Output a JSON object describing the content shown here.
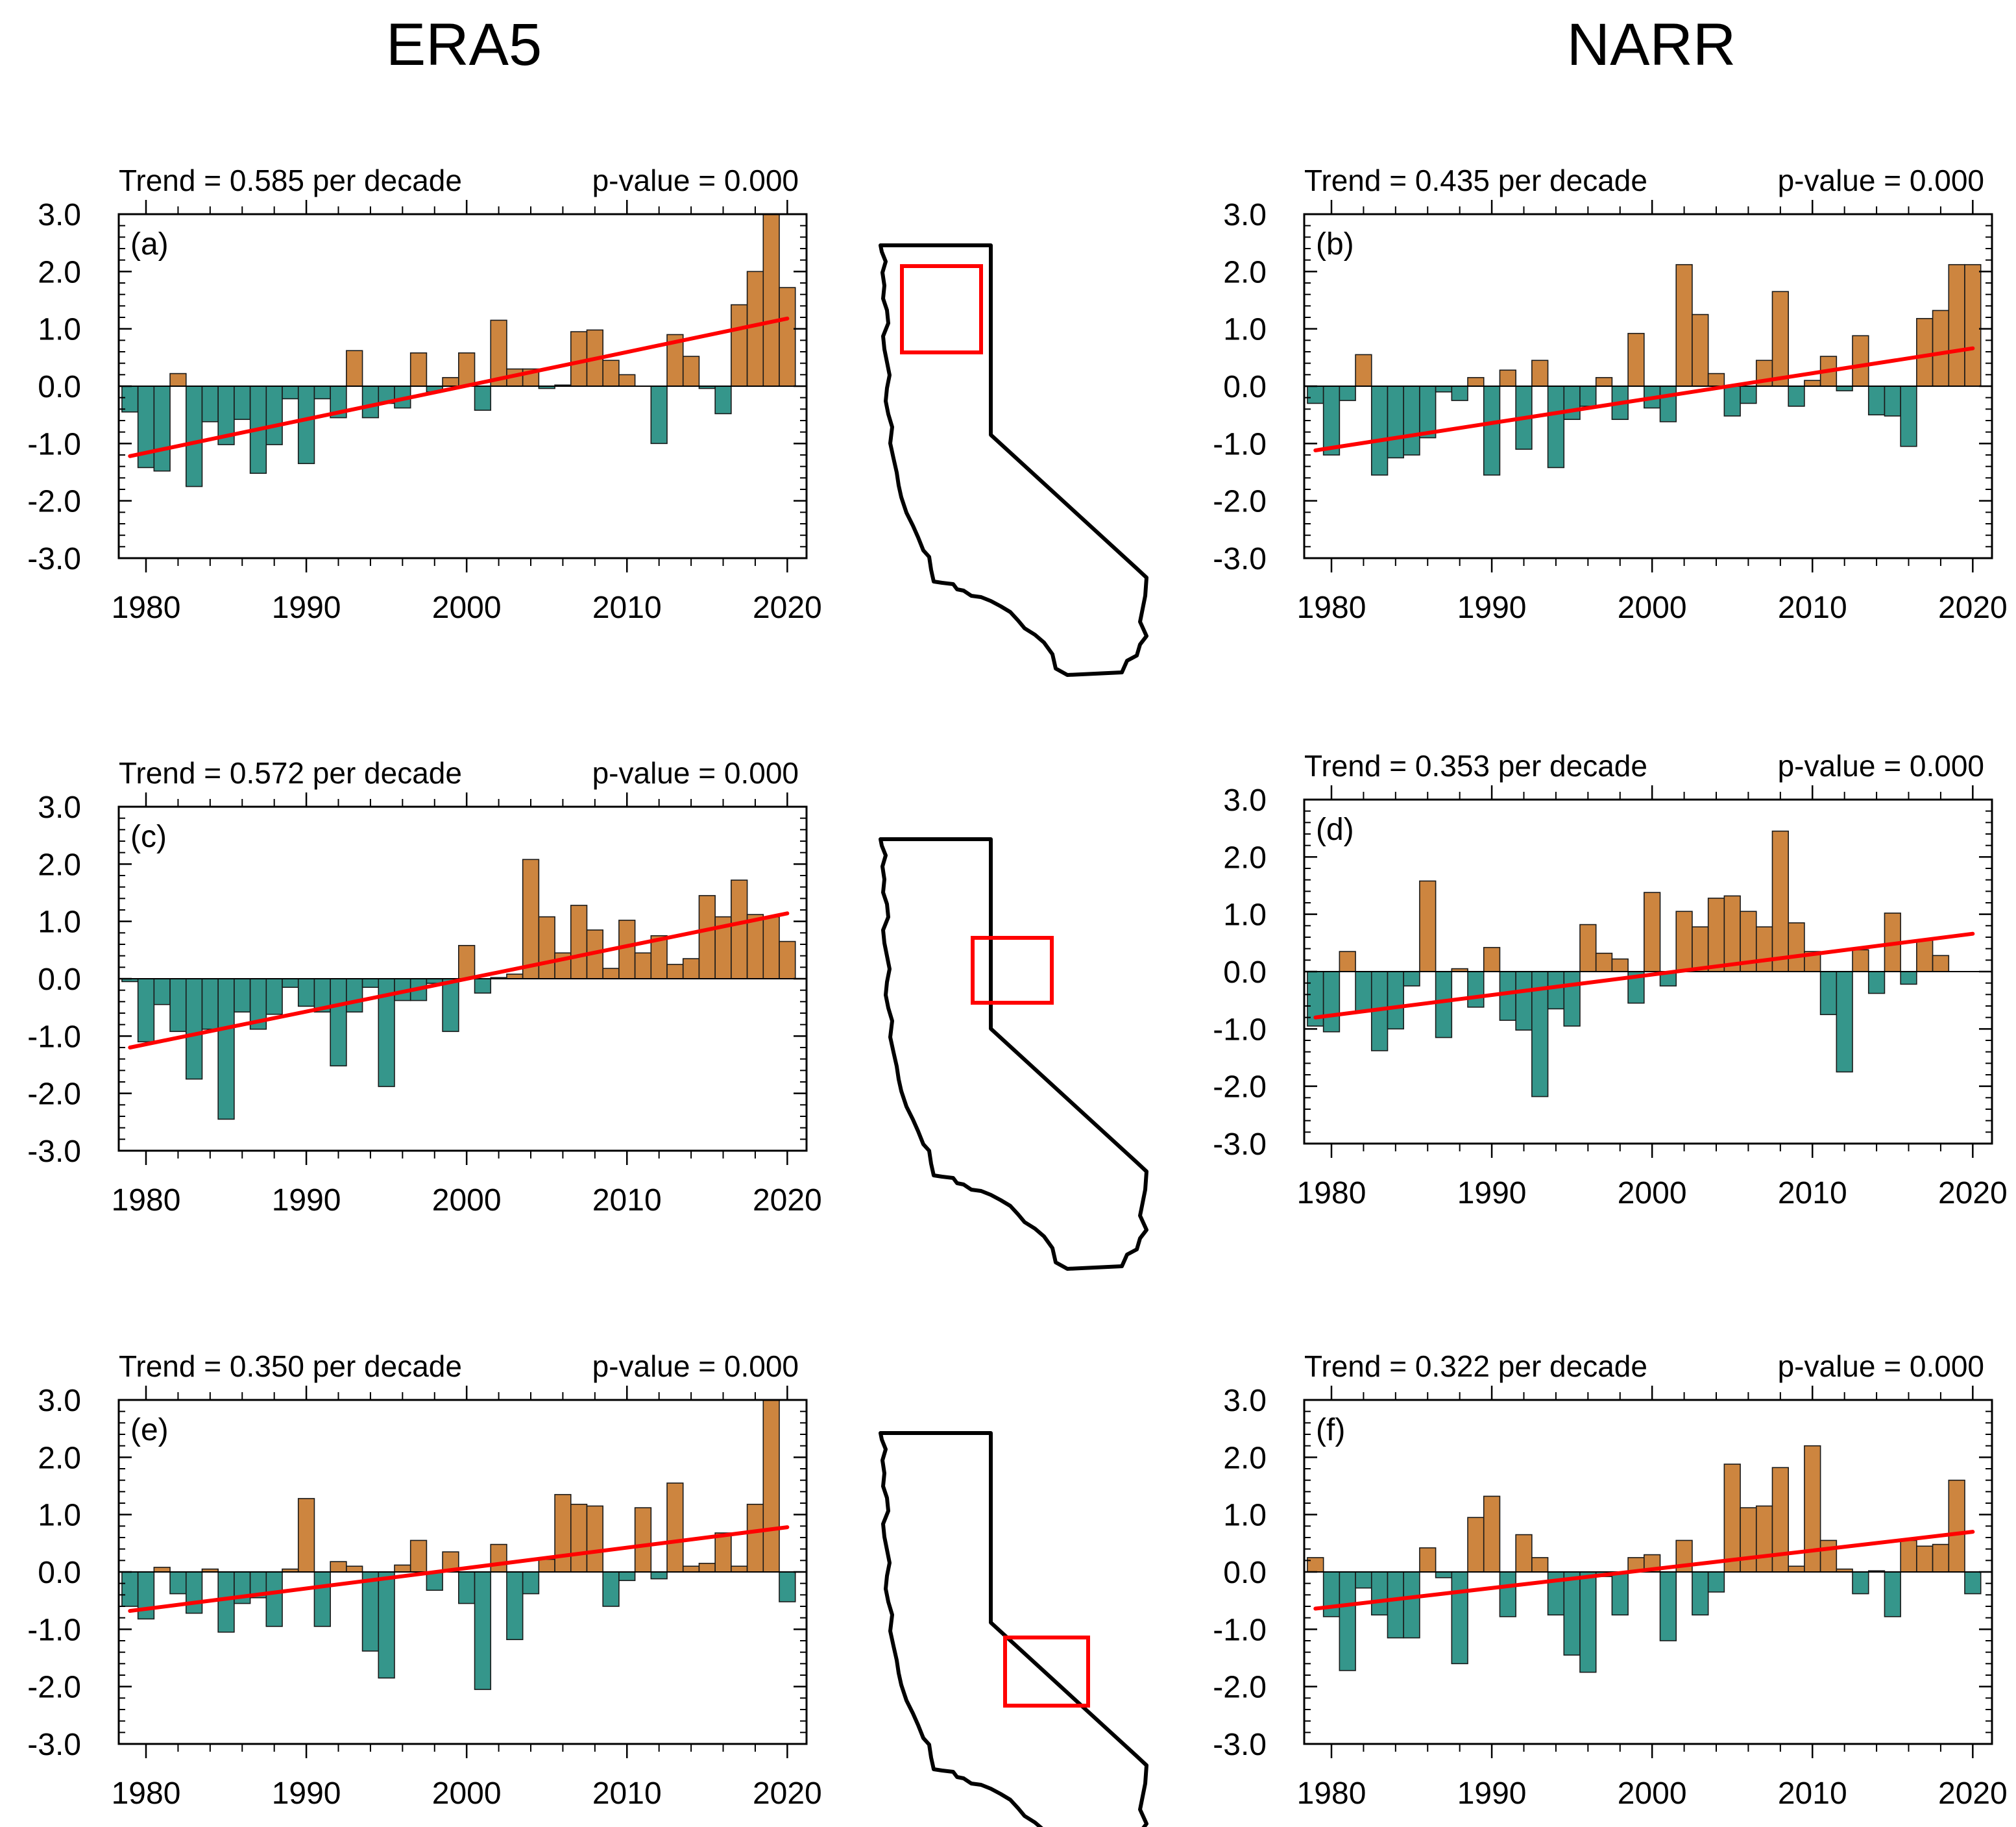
{
  "column_titles": [
    "ERA5",
    "NARR"
  ],
  "colors": {
    "positive": "#CD853F",
    "negative": "#35968B",
    "trend": "#FF0000",
    "inset_box": "#FF0000"
  },
  "chart_data": [
    {
      "type": "bar",
      "id": "a",
      "label": "(a)",
      "dataset": "ERA5",
      "trend_text": "Trend = 0.585 per decade",
      "p_text": "p-value = 0.000",
      "years": [
        1979,
        1980,
        1981,
        1982,
        1983,
        1984,
        1985,
        1986,
        1987,
        1988,
        1989,
        1990,
        1991,
        1992,
        1993,
        1994,
        1995,
        1996,
        1997,
        1998,
        1999,
        2000,
        2001,
        2002,
        2003,
        2004,
        2005,
        2006,
        2007,
        2008,
        2009,
        2010,
        2011,
        2012,
        2013,
        2014,
        2015,
        2016,
        2017,
        2018,
        2019,
        2020
      ],
      "values": [
        -0.45,
        -1.42,
        -1.48,
        0.22,
        -1.75,
        -0.62,
        -1.02,
        -0.58,
        -1.52,
        -1.02,
        -0.22,
        -1.35,
        -0.22,
        -0.55,
        0.62,
        -0.55,
        -0.3,
        -0.38,
        0.58,
        -0.1,
        0.15,
        0.58,
        -0.42,
        1.15,
        0.3,
        0.3,
        -0.04,
        0.02,
        0.95,
        0.98,
        0.45,
        0.2,
        0.0,
        -1.0,
        0.9,
        0.52,
        -0.04,
        -0.48,
        1.42,
        2.0,
        3.0,
        1.72
      ],
      "trend_line": {
        "x": [
          1979,
          2020
        ],
        "y": [
          -1.22,
          1.18
        ]
      },
      "ylim": [
        -3.0,
        3.0
      ],
      "yticks": [
        "3.0",
        "2.0",
        "1.0",
        "0.0",
        "-1.0",
        "-2.0",
        "-3.0"
      ],
      "xticks": [
        "1980",
        "1990",
        "2000",
        "2010",
        "2020"
      ],
      "xlim": [
        1978.3,
        2021.2
      ],
      "region": "north"
    },
    {
      "type": "bar",
      "id": "b",
      "label": "(b)",
      "dataset": "NARR",
      "trend_text": "Trend = 0.435 per decade",
      "p_text": "p-value = 0.000",
      "years": [
        1979,
        1980,
        1981,
        1982,
        1983,
        1984,
        1985,
        1986,
        1987,
        1988,
        1989,
        1990,
        1991,
        1992,
        1993,
        1994,
        1995,
        1996,
        1997,
        1998,
        1999,
        2000,
        2001,
        2002,
        2003,
        2004,
        2005,
        2006,
        2007,
        2008,
        2009,
        2010,
        2011,
        2012,
        2013,
        2014,
        2015,
        2016,
        2017,
        2018,
        2019,
        2020
      ],
      "values": [
        -0.3,
        -1.2,
        -0.25,
        0.55,
        -1.55,
        -1.25,
        -1.2,
        -0.9,
        -0.1,
        -0.25,
        0.15,
        -1.55,
        0.28,
        -1.1,
        0.45,
        -1.42,
        -0.58,
        -0.35,
        0.15,
        -0.58,
        0.92,
        -0.38,
        -0.62,
        2.12,
        1.25,
        0.22,
        -0.52,
        -0.3,
        0.45,
        1.65,
        -0.35,
        0.1,
        0.52,
        -0.08,
        0.88,
        -0.5,
        -0.52,
        -1.05,
        1.18,
        1.32,
        2.12,
        2.12
      ],
      "trend_line": {
        "x": [
          1979,
          2020
        ],
        "y": [
          -1.12,
          0.66
        ]
      },
      "ylim": [
        -3.0,
        3.0
      ],
      "yticks": [
        "3.0",
        "2.0",
        "1.0",
        "0.0",
        "-1.0",
        "-2.0",
        "-3.0"
      ],
      "xticks": [
        "1980",
        "1990",
        "2000",
        "2010",
        "2020"
      ],
      "xlim": [
        1978.3,
        2021.2
      ]
    },
    {
      "type": "bar",
      "id": "c",
      "label": "(c)",
      "dataset": "ERA5",
      "trend_text": "Trend = 0.572 per decade",
      "p_text": "p-value = 0.000",
      "years": [
        1979,
        1980,
        1981,
        1982,
        1983,
        1984,
        1985,
        1986,
        1987,
        1988,
        1989,
        1990,
        1991,
        1992,
        1993,
        1994,
        1995,
        1996,
        1997,
        1998,
        1999,
        2000,
        2001,
        2002,
        2003,
        2004,
        2005,
        2006,
        2007,
        2008,
        2009,
        2010,
        2011,
        2012,
        2013,
        2014,
        2015,
        2016,
        2017,
        2018,
        2019,
        2020
      ],
      "values": [
        -0.05,
        -1.1,
        -0.45,
        -0.92,
        -1.75,
        -0.88,
        -2.45,
        -0.58,
        -0.88,
        -0.62,
        -0.15,
        -0.48,
        -0.58,
        -1.52,
        -0.58,
        -0.15,
        -1.88,
        -0.38,
        -0.38,
        -0.08,
        -0.92,
        0.58,
        -0.25,
        0.02,
        0.08,
        2.08,
        1.08,
        0.45,
        1.28,
        0.85,
        0.18,
        1.02,
        0.45,
        0.75,
        0.25,
        0.35,
        1.45,
        1.08,
        1.72,
        1.12,
        1.08,
        0.65
      ],
      "trend_line": {
        "x": [
          1979,
          2020
        ],
        "y": [
          -1.2,
          1.14
        ]
      },
      "ylim": [
        -3.0,
        3.0
      ],
      "yticks": [
        "3.0",
        "2.0",
        "1.0",
        "0.0",
        "-1.0",
        "-2.0",
        "-3.0"
      ],
      "xticks": [
        "1980",
        "1990",
        "2000",
        "2010",
        "2020"
      ],
      "xlim": [
        1978.3,
        2021.2
      ],
      "region": "central"
    },
    {
      "type": "bar",
      "id": "d",
      "label": "(d)",
      "dataset": "NARR",
      "trend_text": "Trend = 0.353 per decade",
      "p_text": "p-value = 0.000",
      "years": [
        1979,
        1980,
        1981,
        1982,
        1983,
        1984,
        1985,
        1986,
        1987,
        1988,
        1989,
        1990,
        1991,
        1992,
        1993,
        1994,
        1995,
        1996,
        1997,
        1998,
        1999,
        2000,
        2001,
        2002,
        2003,
        2004,
        2005,
        2006,
        2007,
        2008,
        2009,
        2010,
        2011,
        2012,
        2013,
        2014,
        2015,
        2016,
        2017,
        2018,
        2019,
        2020
      ],
      "values": [
        -0.95,
        -1.05,
        0.35,
        -0.7,
        -1.38,
        -1.0,
        -0.25,
        1.58,
        -1.15,
        0.05,
        -0.62,
        0.42,
        -0.85,
        -1.02,
        -2.18,
        -0.65,
        -0.95,
        0.82,
        0.32,
        0.22,
        -0.55,
        1.38,
        -0.25,
        1.05,
        0.78,
        1.28,
        1.32,
        1.05,
        0.78,
        2.45,
        0.85,
        0.35,
        -0.75,
        -1.75,
        0.38,
        -0.38,
        1.02,
        -0.22,
        0.55,
        0.28,
        0.0,
        0.0
      ],
      "trend_line": {
        "x": [
          1979,
          2020
        ],
        "y": [
          -0.8,
          0.66
        ]
      },
      "ylim": [
        -3.0,
        3.0
      ],
      "yticks": [
        "3.0",
        "2.0",
        "1.0",
        "0.0",
        "-1.0",
        "-2.0",
        "-3.0"
      ],
      "xticks": [
        "1980",
        "1990",
        "2000",
        "2010",
        "2020"
      ],
      "xlim": [
        1978.3,
        2021.2
      ]
    },
    {
      "type": "bar",
      "id": "e",
      "label": "(e)",
      "dataset": "ERA5",
      "trend_text": "Trend = 0.350 per decade",
      "p_text": "p-value = 0.000",
      "years": [
        1979,
        1980,
        1981,
        1982,
        1983,
        1984,
        1985,
        1986,
        1987,
        1988,
        1989,
        1990,
        1991,
        1992,
        1993,
        1994,
        1995,
        1996,
        1997,
        1998,
        1999,
        2000,
        2001,
        2002,
        2003,
        2004,
        2005,
        2006,
        2007,
        2008,
        2009,
        2010,
        2011,
        2012,
        2013,
        2014,
        2015,
        2016,
        2017,
        2018,
        2019,
        2020
      ],
      "values": [
        -0.6,
        -0.82,
        0.08,
        -0.38,
        -0.72,
        0.05,
        -1.05,
        -0.55,
        -0.45,
        -0.95,
        0.05,
        1.28,
        -0.95,
        0.18,
        0.1,
        -1.38,
        -1.85,
        0.12,
        0.55,
        -0.32,
        0.35,
        -0.55,
        -2.05,
        0.48,
        -1.18,
        -0.38,
        0.22,
        1.35,
        1.18,
        1.15,
        -0.6,
        -0.15,
        1.12,
        -0.12,
        1.55,
        0.1,
        0.15,
        0.68,
        0.1,
        1.18,
        3.0,
        -0.52
      ],
      "trend_line": {
        "x": [
          1979,
          2020
        ],
        "y": [
          -0.68,
          0.78
        ]
      },
      "ylim": [
        -3.0,
        3.0
      ],
      "yticks": [
        "3.0",
        "2.0",
        "1.0",
        "0.0",
        "-1.0",
        "-2.0",
        "-3.0"
      ],
      "xticks": [
        "1980",
        "1990",
        "2000",
        "2010",
        "2020"
      ],
      "xlim": [
        1978.3,
        2021.2
      ],
      "region": "south"
    },
    {
      "type": "bar",
      "id": "f",
      "label": "(f)",
      "dataset": "NARR",
      "trend_text": "Trend = 0.322 per decade",
      "p_text": "p-value = 0.000",
      "years": [
        1979,
        1980,
        1981,
        1982,
        1983,
        1984,
        1985,
        1986,
        1987,
        1988,
        1989,
        1990,
        1991,
        1992,
        1993,
        1994,
        1995,
        1996,
        1997,
        1998,
        1999,
        2000,
        2001,
        2002,
        2003,
        2004,
        2005,
        2006,
        2007,
        2008,
        2009,
        2010,
        2011,
        2012,
        2013,
        2014,
        2015,
        2016,
        2017,
        2018,
        2019,
        2020
      ],
      "values": [
        0.25,
        -0.78,
        -1.72,
        -0.28,
        -0.75,
        -1.15,
        -1.15,
        0.42,
        -0.1,
        -1.6,
        0.95,
        1.32,
        -0.78,
        0.65,
        0.25,
        -0.75,
        -1.45,
        -1.75,
        -0.08,
        -0.75,
        0.25,
        0.3,
        -1.2,
        0.55,
        -0.75,
        -0.35,
        1.88,
        1.12,
        1.15,
        1.82,
        0.1,
        2.2,
        0.55,
        0.05,
        -0.38,
        0.02,
        -0.78,
        0.55,
        0.45,
        0.48,
        1.6,
        -0.38
      ],
      "trend_line": {
        "x": [
          1979,
          2020
        ],
        "y": [
          -0.64,
          0.7
        ]
      },
      "ylim": [
        -3.0,
        3.0
      ],
      "yticks": [
        "3.0",
        "2.0",
        "1.0",
        "0.0",
        "-1.0",
        "-2.0",
        "-3.0"
      ],
      "xticks": [
        "1980",
        "1990",
        "2000",
        "2010",
        "2020"
      ],
      "xlim": [
        1978.3,
        2021.2
      ]
    }
  ]
}
